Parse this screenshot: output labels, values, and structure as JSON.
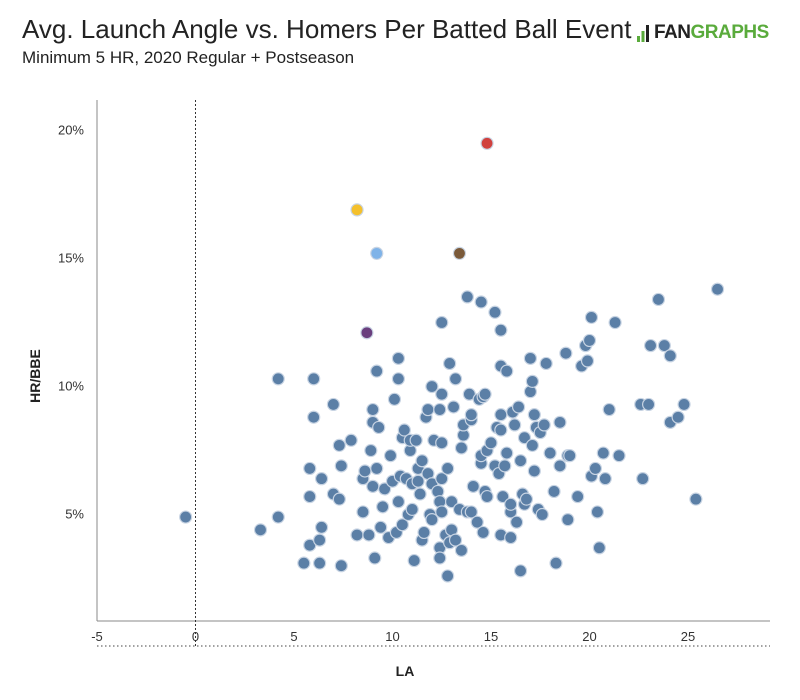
{
  "header": {
    "title": "Avg. Launch Angle vs. Homers Per Batted Ball Event",
    "subtitle": "Minimum 5 HR, 2020 Regular + Postseason",
    "logo_left": "FAN",
    "logo_right": "GRAPHS"
  },
  "colors": {
    "default_point": "#5b7fa6",
    "point_stroke": "#c8d4e3",
    "logo_green": "#5aab3c"
  },
  "chart_data": {
    "type": "scatter",
    "title": "Avg. Launch Angle vs. Homers Per Batted Ball Event",
    "subtitle": "Minimum 5 HR, 2020 Regular + Postseason",
    "xlabel": "LA",
    "ylabel": "HR/BBE",
    "xlim": [
      -5,
      29
    ],
    "ylim": [
      0.5,
      21
    ],
    "xticks": [
      -5,
      0,
      5,
      10,
      15,
      20,
      25
    ],
    "xtick_labels": [
      "-5",
      "0",
      "5",
      "10",
      "15",
      "20",
      "25"
    ],
    "yticks": [
      5,
      10,
      15,
      20
    ],
    "ytick_labels": [
      "5%",
      "10%",
      "15%",
      "20%"
    ],
    "zero_line": 0,
    "grid": false,
    "highlighted": [
      {
        "x": 14.8,
        "y": 19.5,
        "color": "#d0413e"
      },
      {
        "x": 8.2,
        "y": 16.9,
        "color": "#f4c02c"
      },
      {
        "x": 9.2,
        "y": 15.2,
        "color": "#7fb3e8"
      },
      {
        "x": 13.4,
        "y": 15.2,
        "color": "#7a5a3a"
      },
      {
        "x": 8.7,
        "y": 12.1,
        "color": "#6a3f7e"
      }
    ],
    "points": [
      [
        -0.5,
        4.9
      ],
      [
        3.3,
        4.4
      ],
      [
        4.2,
        4.9
      ],
      [
        4.2,
        10.3
      ],
      [
        5.5,
        3.1
      ],
      [
        5.8,
        3.8
      ],
      [
        5.8,
        5.7
      ],
      [
        5.8,
        6.8
      ],
      [
        6.0,
        8.8
      ],
      [
        6.0,
        10.3
      ],
      [
        6.3,
        3.1
      ],
      [
        6.3,
        4.0
      ],
      [
        6.4,
        4.5
      ],
      [
        6.4,
        6.4
      ],
      [
        7.0,
        5.8
      ],
      [
        7.0,
        9.3
      ],
      [
        7.3,
        7.7
      ],
      [
        7.3,
        5.6
      ],
      [
        7.4,
        3.0
      ],
      [
        7.4,
        6.9
      ],
      [
        7.9,
        7.9
      ],
      [
        8.2,
        4.2
      ],
      [
        8.5,
        5.1
      ],
      [
        8.5,
        6.4
      ],
      [
        8.6,
        6.7
      ],
      [
        8.8,
        4.2
      ],
      [
        8.9,
        7.5
      ],
      [
        9.0,
        6.1
      ],
      [
        9.0,
        9.1
      ],
      [
        9.0,
        8.6
      ],
      [
        9.1,
        3.3
      ],
      [
        9.2,
        10.6
      ],
      [
        9.2,
        6.8
      ],
      [
        9.3,
        8.4
      ],
      [
        9.4,
        4.5
      ],
      [
        9.5,
        5.3
      ],
      [
        9.6,
        6.0
      ],
      [
        9.8,
        4.1
      ],
      [
        9.9,
        7.3
      ],
      [
        10.0,
        6.3
      ],
      [
        10.1,
        9.5
      ],
      [
        10.2,
        4.3
      ],
      [
        10.3,
        5.5
      ],
      [
        10.3,
        11.1
      ],
      [
        10.3,
        10.3
      ],
      [
        10.4,
        6.5
      ],
      [
        10.5,
        4.6
      ],
      [
        10.5,
        8.0
      ],
      [
        10.6,
        8.3
      ],
      [
        10.7,
        6.4
      ],
      [
        10.8,
        5.0
      ],
      [
        10.9,
        7.5
      ],
      [
        10.9,
        7.9
      ],
      [
        11.0,
        6.2
      ],
      [
        11.0,
        5.2
      ],
      [
        11.1,
        3.2
      ],
      [
        11.2,
        7.9
      ],
      [
        11.3,
        6.8
      ],
      [
        11.3,
        6.3
      ],
      [
        11.4,
        5.8
      ],
      [
        11.5,
        4.0
      ],
      [
        11.5,
        7.1
      ],
      [
        11.6,
        4.3
      ],
      [
        11.7,
        8.8
      ],
      [
        11.8,
        9.1
      ],
      [
        11.8,
        6.6
      ],
      [
        11.9,
        5.0
      ],
      [
        12.0,
        6.2
      ],
      [
        12.0,
        10.0
      ],
      [
        12.0,
        4.8
      ],
      [
        12.1,
        7.9
      ],
      [
        12.3,
        5.9
      ],
      [
        12.4,
        9.1
      ],
      [
        12.4,
        3.7
      ],
      [
        12.4,
        3.3
      ],
      [
        12.4,
        5.5
      ],
      [
        12.5,
        5.1
      ],
      [
        12.5,
        6.4
      ],
      [
        12.5,
        7.8
      ],
      [
        12.5,
        9.7
      ],
      [
        12.5,
        12.5
      ],
      [
        12.7,
        4.2
      ],
      [
        12.8,
        2.6
      ],
      [
        12.8,
        6.8
      ],
      [
        12.9,
        10.9
      ],
      [
        12.9,
        3.9
      ],
      [
        13.0,
        5.5
      ],
      [
        13.0,
        4.4
      ],
      [
        13.1,
        9.2
      ],
      [
        13.2,
        4.0
      ],
      [
        13.2,
        10.3
      ],
      [
        13.4,
        5.2
      ],
      [
        13.5,
        3.6
      ],
      [
        13.5,
        7.6
      ],
      [
        13.6,
        8.1
      ],
      [
        13.6,
        8.5
      ],
      [
        13.8,
        5.1
      ],
      [
        13.8,
        13.5
      ],
      [
        13.9,
        9.7
      ],
      [
        14.0,
        8.7
      ],
      [
        14.0,
        8.9
      ],
      [
        14.0,
        5.1
      ],
      [
        14.1,
        6.1
      ],
      [
        14.3,
        4.7
      ],
      [
        14.4,
        9.5
      ],
      [
        14.5,
        13.3
      ],
      [
        14.5,
        7.0
      ],
      [
        14.5,
        7.3
      ],
      [
        14.6,
        4.3
      ],
      [
        14.6,
        9.6
      ],
      [
        14.7,
        9.7
      ],
      [
        14.7,
        5.9
      ],
      [
        14.8,
        5.7
      ],
      [
        14.8,
        7.5
      ],
      [
        15.0,
        7.8
      ],
      [
        15.2,
        6.9
      ],
      [
        15.2,
        12.9
      ],
      [
        15.3,
        8.4
      ],
      [
        15.4,
        6.6
      ],
      [
        15.5,
        4.2
      ],
      [
        15.5,
        8.3
      ],
      [
        15.5,
        8.9
      ],
      [
        15.5,
        10.8
      ],
      [
        15.5,
        12.2
      ],
      [
        15.6,
        5.7
      ],
      [
        15.7,
        6.9
      ],
      [
        15.8,
        10.6
      ],
      [
        15.8,
        7.4
      ],
      [
        16.0,
        5.1
      ],
      [
        16.0,
        4.1
      ],
      [
        16.0,
        5.4
      ],
      [
        16.1,
        9.0
      ],
      [
        16.2,
        8.5
      ],
      [
        16.3,
        4.7
      ],
      [
        16.4,
        9.2
      ],
      [
        16.5,
        7.1
      ],
      [
        16.5,
        2.8
      ],
      [
        16.6,
        5.8
      ],
      [
        16.7,
        5.4
      ],
      [
        16.7,
        8.0
      ],
      [
        16.8,
        5.6
      ],
      [
        17.0,
        11.1
      ],
      [
        17.0,
        9.8
      ],
      [
        17.1,
        7.7
      ],
      [
        17.1,
        10.2
      ],
      [
        17.2,
        6.7
      ],
      [
        17.2,
        8.9
      ],
      [
        17.3,
        8.4
      ],
      [
        17.4,
        5.2
      ],
      [
        17.5,
        8.2
      ],
      [
        17.6,
        5.0
      ],
      [
        17.7,
        8.5
      ],
      [
        17.8,
        10.9
      ],
      [
        18.0,
        7.4
      ],
      [
        18.2,
        5.9
      ],
      [
        18.3,
        3.1
      ],
      [
        18.5,
        8.6
      ],
      [
        18.5,
        6.9
      ],
      [
        18.8,
        11.3
      ],
      [
        18.9,
        7.3
      ],
      [
        18.9,
        4.8
      ],
      [
        19.0,
        7.3
      ],
      [
        19.4,
        5.7
      ],
      [
        19.6,
        10.8
      ],
      [
        19.8,
        11.6
      ],
      [
        19.9,
        11.0
      ],
      [
        20.0,
        11.8
      ],
      [
        20.1,
        6.5
      ],
      [
        20.1,
        12.7
      ],
      [
        20.3,
        6.8
      ],
      [
        20.4,
        5.1
      ],
      [
        20.5,
        3.7
      ],
      [
        20.7,
        7.4
      ],
      [
        20.8,
        6.4
      ],
      [
        21.0,
        9.1
      ],
      [
        21.3,
        12.5
      ],
      [
        21.5,
        7.3
      ],
      [
        22.6,
        9.3
      ],
      [
        22.7,
        6.4
      ],
      [
        23.0,
        9.3
      ],
      [
        23.1,
        11.6
      ],
      [
        23.5,
        13.4
      ],
      [
        23.8,
        11.6
      ],
      [
        24.1,
        11.2
      ],
      [
        24.1,
        8.6
      ],
      [
        24.5,
        8.8
      ],
      [
        24.8,
        9.3
      ],
      [
        25.4,
        5.6
      ],
      [
        26.5,
        13.8
      ]
    ]
  }
}
